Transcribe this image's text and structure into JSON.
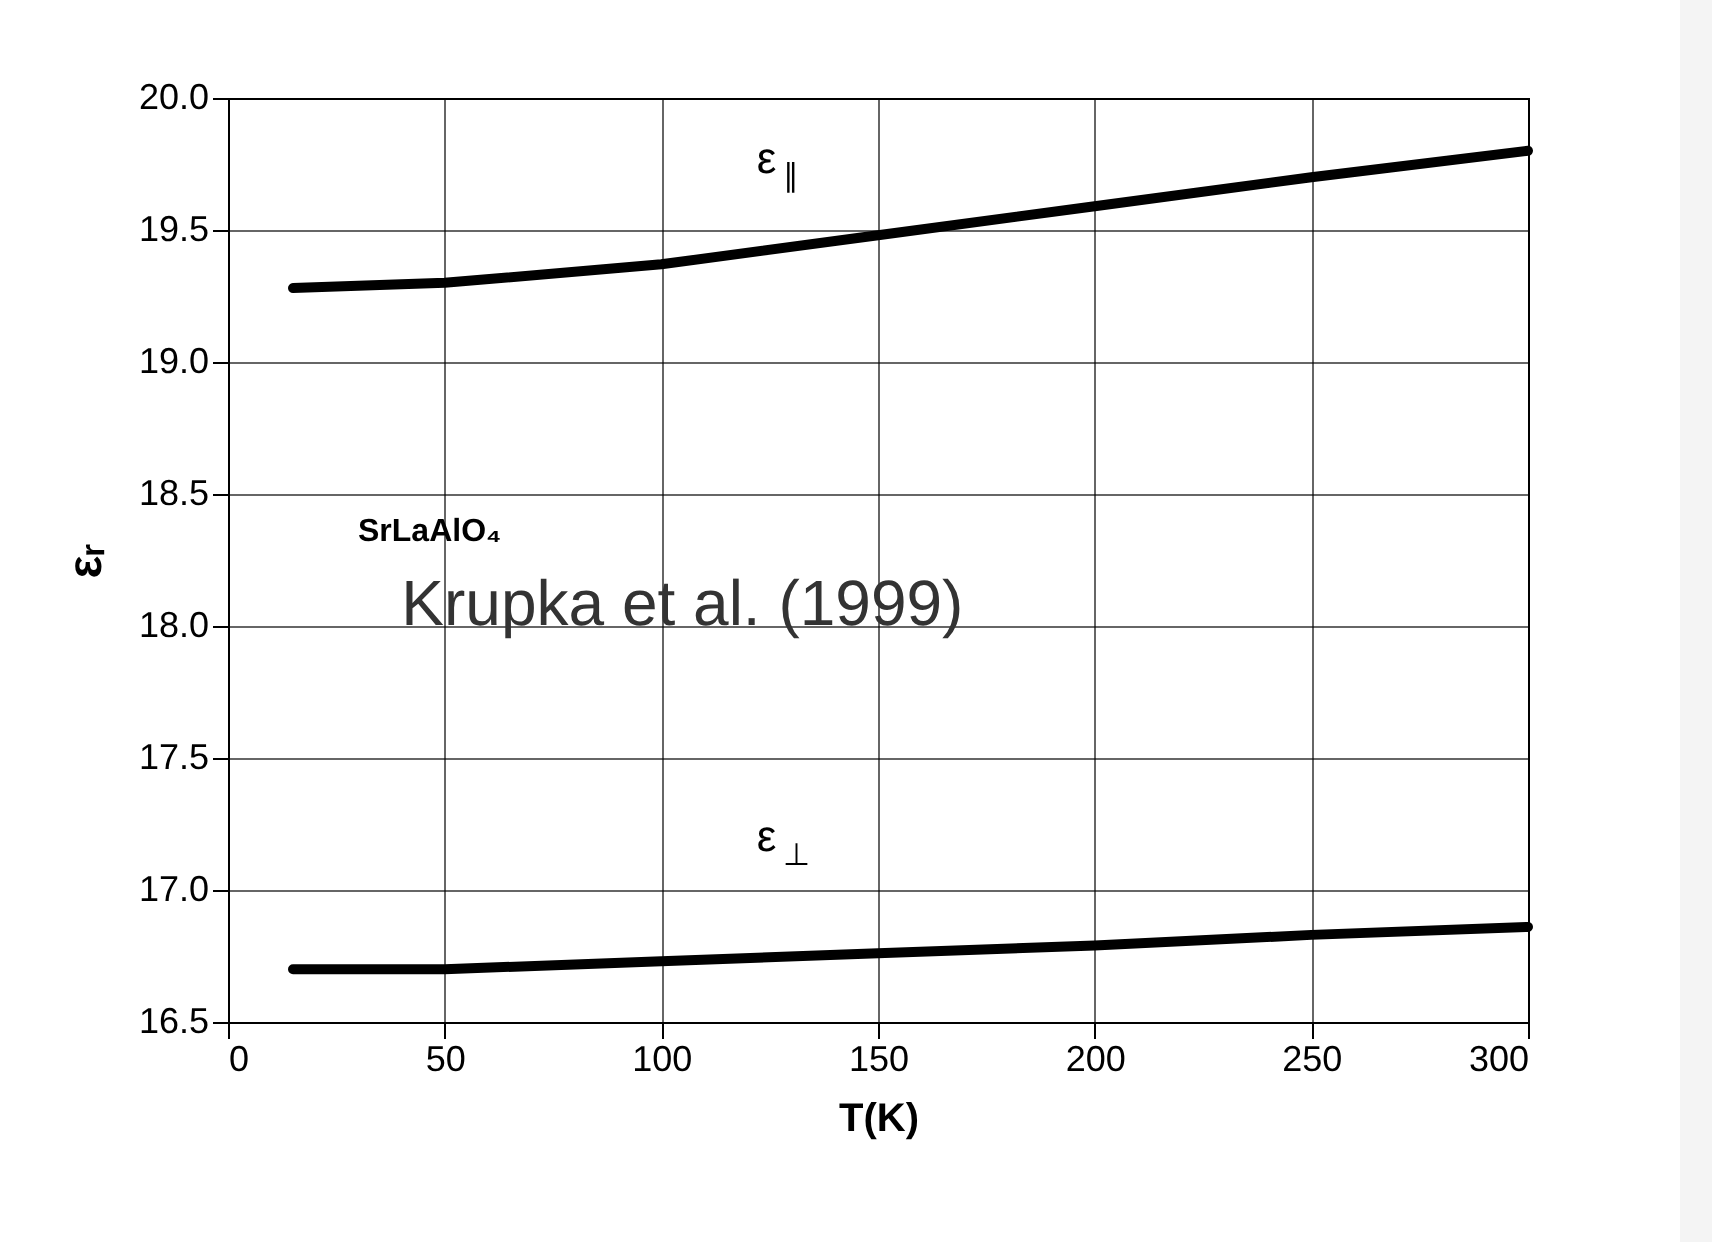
{
  "chart_data": {
    "type": "line",
    "xlabel": "T(K)",
    "ylabel": "εᵣ",
    "series": [
      {
        "color": "#000000",
        "x": [
          15,
          50,
          100,
          150,
          200,
          250,
          300
        ],
        "values": [
          19.28,
          19.3,
          19.37,
          19.48,
          19.59,
          19.7,
          19.8
        ]
      },
      {
        "color": "#000000",
        "x": [
          15,
          50,
          100,
          150,
          200,
          250,
          300
        ],
        "values": [
          16.7,
          16.7,
          16.73,
          16.76,
          16.79,
          16.83,
          16.86
        ]
      }
    ],
    "xlim": [
      0,
      300
    ],
    "xticks": [
      0,
      50,
      100,
      150,
      200,
      250,
      300
    ],
    "ylim": [
      16.5,
      20.0
    ],
    "yticks": [
      {
        "value": 16.5,
        "label": "16.5"
      },
      {
        "value": 17,
        "label": "17.0"
      },
      {
        "value": 17.5,
        "label": "17.5"
      },
      {
        "value": 18,
        "label": "18.0"
      },
      {
        "value": 18.5,
        "label": "18.5"
      },
      {
        "value": 19,
        "label": "19.0"
      },
      {
        "value": 19.5,
        "label": "19.5"
      },
      {
        "value": 20,
        "label": "20.0"
      }
    ],
    "grid": true,
    "marker": "none",
    "line_style": "solid",
    "annotations": [
      "ε$_{∥}$",
      "ε$_{⊥}$",
      "SrLaAlO₄",
      "Krupka et al. (1999)"
    ]
  }
}
